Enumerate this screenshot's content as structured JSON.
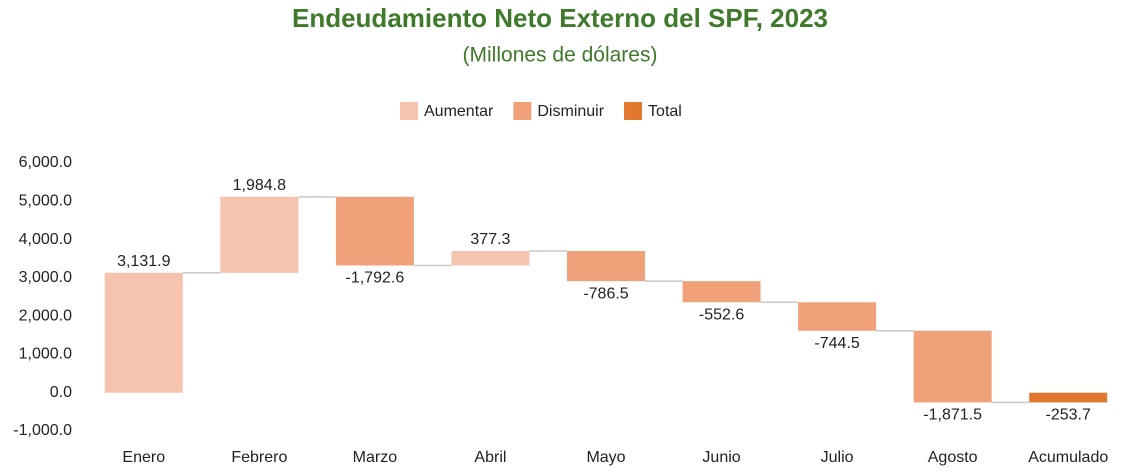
{
  "chart_data": {
    "type": "waterfall",
    "title": "Endeudamiento Neto Externo del SPF, 2023",
    "subtitle": "(Millones de dólares)",
    "categories": [
      "Enero",
      "Febrero",
      "Marzo",
      "Abril",
      "Mayo",
      "Junio",
      "Julio",
      "Agosto",
      "Acumulado"
    ],
    "values": [
      3131.9,
      1984.8,
      -1792.6,
      377.3,
      -786.5,
      -552.6,
      -744.5,
      -1871.5,
      -253.7
    ],
    "value_labels": [
      "3,131.9",
      "1,984.8",
      "-1,792.6",
      "377.3",
      "-786.5",
      "-552.6",
      "-744.5",
      "-1,871.5",
      "-253.7"
    ],
    "total_categories": [
      "Acumulado"
    ],
    "legend": [
      {
        "name": "Aumentar",
        "color": "#f5c3ae"
      },
      {
        "name": "Disminuir",
        "color": "#f0a179"
      },
      {
        "name": "Total",
        "color": "#e2772f"
      }
    ],
    "ylim": [
      -1000,
      6000
    ],
    "yticks": [
      {
        "value": -1000,
        "label": "-1,000.0"
      },
      {
        "value": 0,
        "label": "0.0"
      },
      {
        "value": 1000,
        "label": "1,000.0"
      },
      {
        "value": 2000,
        "label": "2,000.0"
      },
      {
        "value": 3000,
        "label": "3,000.0"
      },
      {
        "value": 4000,
        "label": "4,000.0"
      },
      {
        "value": 5000,
        "label": "5,000.0"
      },
      {
        "value": 6000,
        "label": "6,000.0"
      }
    ],
    "grid": false
  }
}
